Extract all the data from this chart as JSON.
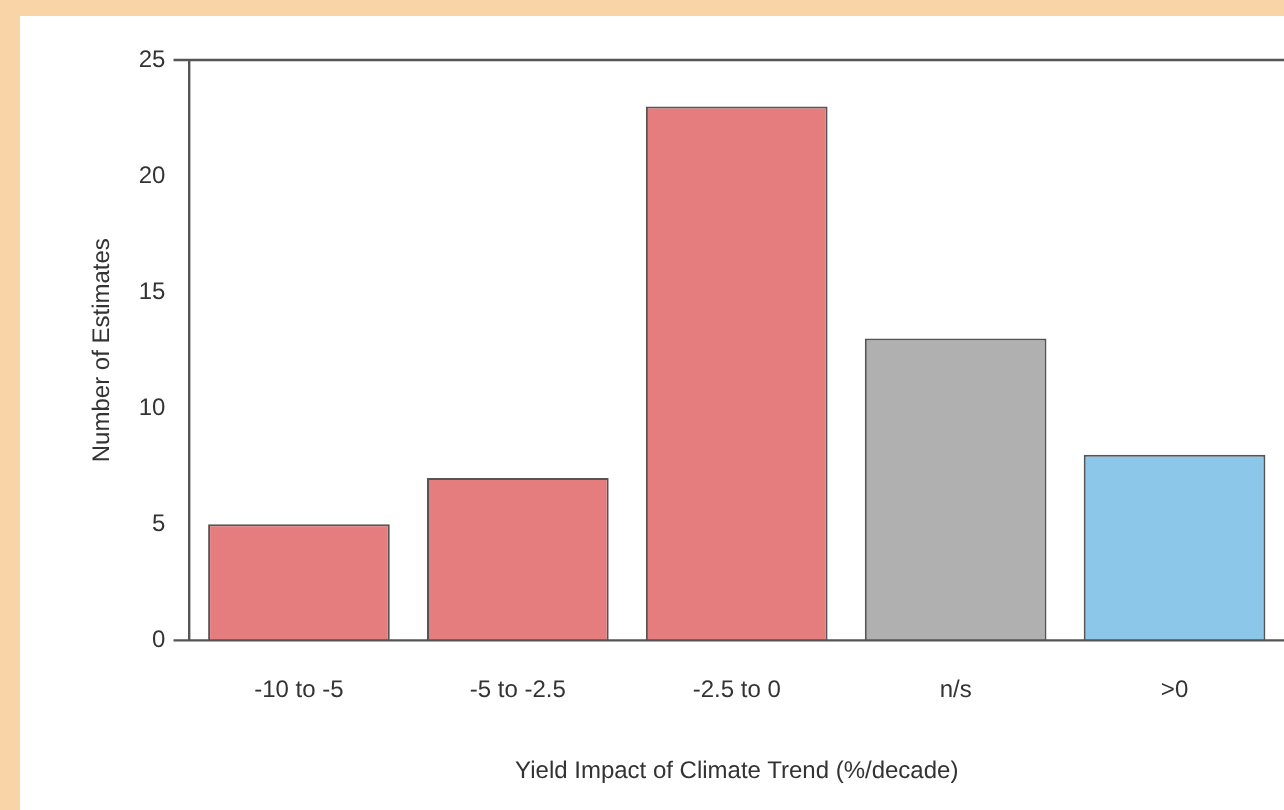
{
  "chart_data": {
    "type": "bar",
    "xlabel": "Yield Impact of Climate Trend (%/decade)",
    "ylabel": "Number of Estimates",
    "categories": [
      "-10 to -5",
      "-5 to -2.5",
      "-2.5 to 0",
      "n/s",
      ">0"
    ],
    "values": [
      5,
      7,
      23,
      13,
      8
    ],
    "colors": [
      "#e57d7f",
      "#e57d7f",
      "#e57d7f",
      "#b0b0b0",
      "#8cc6e8"
    ],
    "ylim": [
      0,
      25
    ],
    "yticks": [
      0,
      5,
      10,
      15,
      20,
      25
    ],
    "grid": false,
    "legend": false
  }
}
